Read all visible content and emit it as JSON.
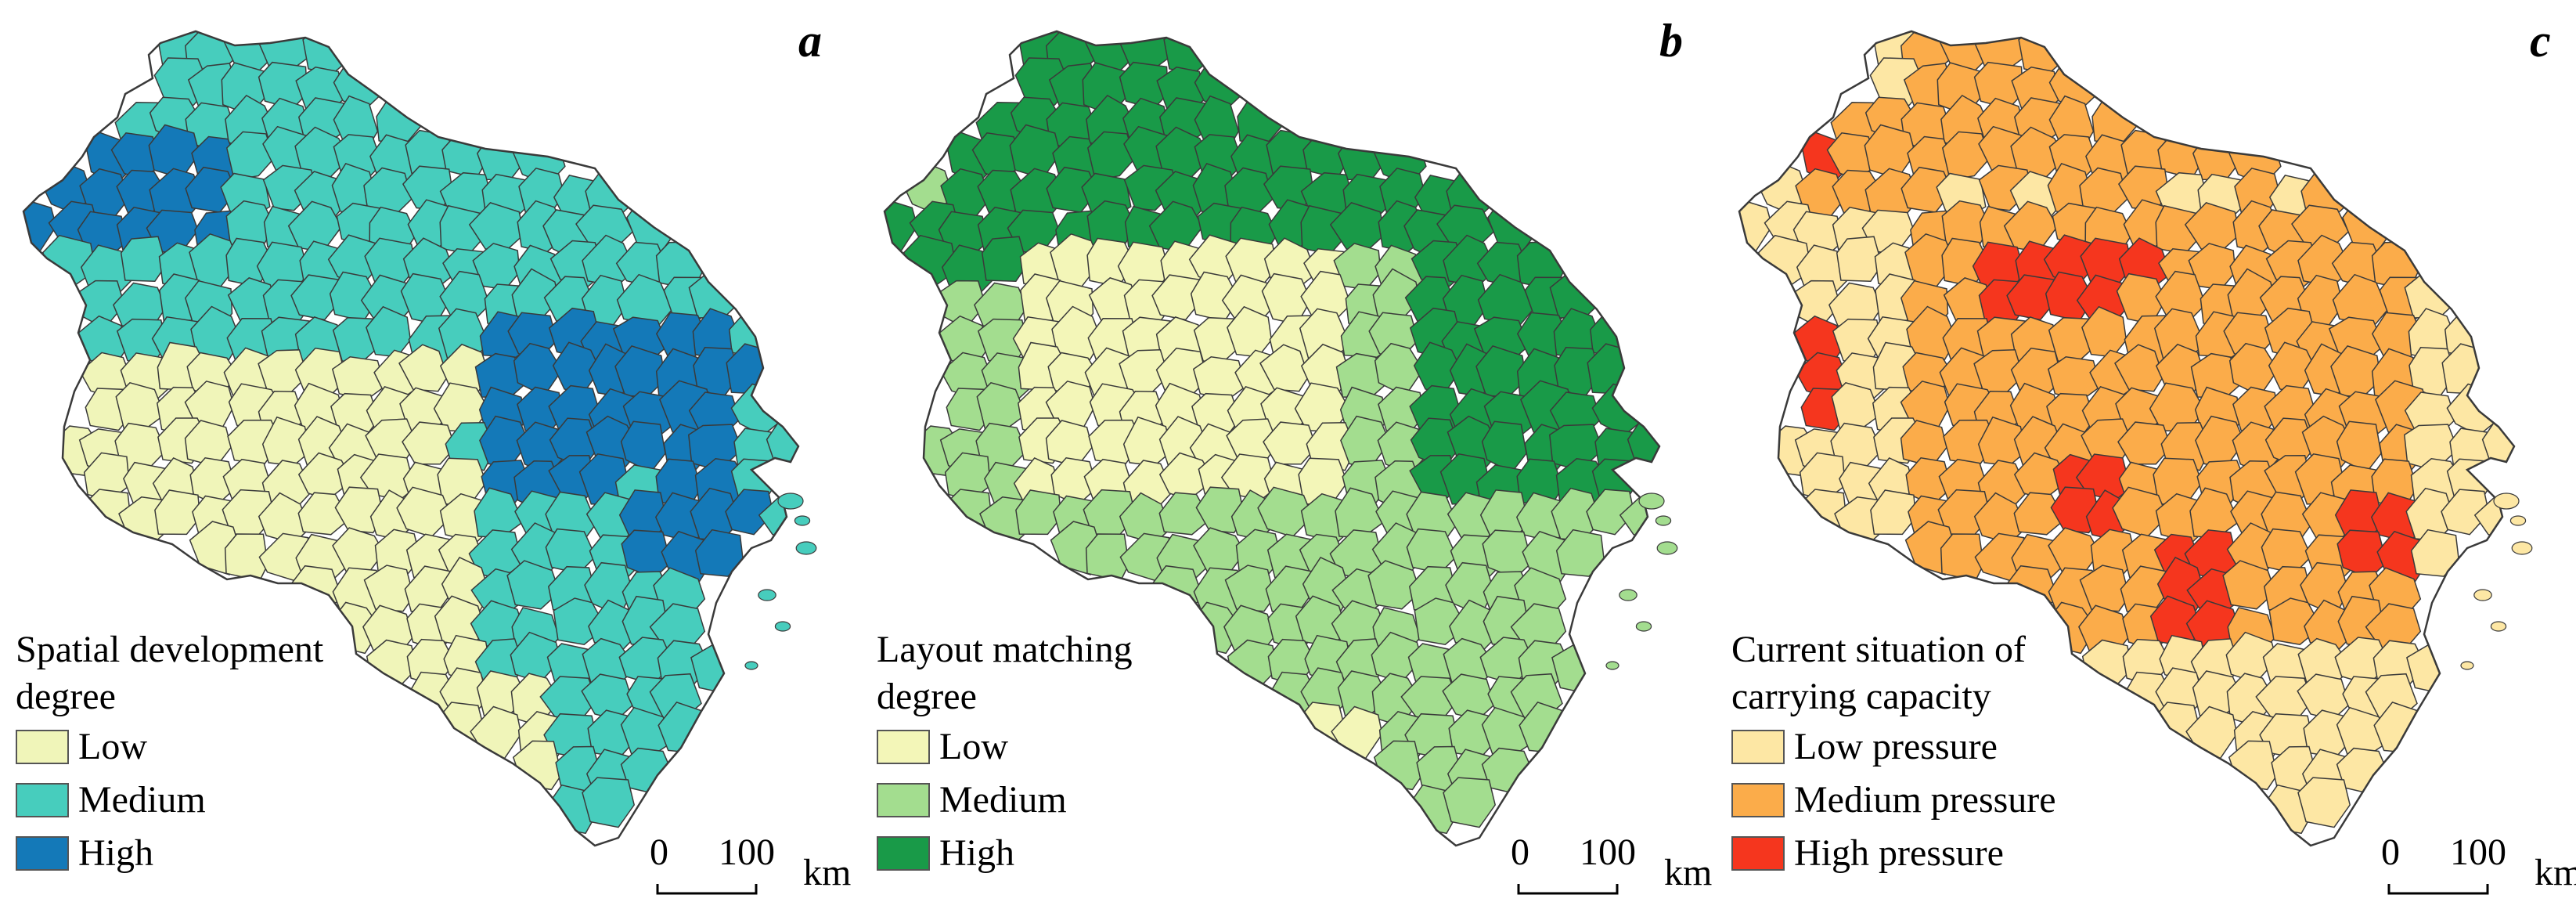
{
  "panels": [
    {
      "letter": "a",
      "legend_title": "Spatial development degree",
      "classes": [
        {
          "label": "Low",
          "color": "#f0f5b9"
        },
        {
          "label": "Medium",
          "color": "#47cdbd"
        },
        {
          "label": "High",
          "color": "#1479b8"
        }
      ]
    },
    {
      "letter": "b",
      "legend_title": "Layout matching degree",
      "classes": [
        {
          "label": "Low",
          "color": "#f3f6b8"
        },
        {
          "label": "Medium",
          "color": "#a3dd8f"
        },
        {
          "label": "High",
          "color": "#199a48"
        }
      ]
    },
    {
      "letter": "c",
      "legend_title": "Current situation of carrying capacity",
      "classes": [
        {
          "label": "Low pressure",
          "color": "#fde7a4"
        },
        {
          "label": "Medium pressure",
          "color": "#fbac4a"
        },
        {
          "label": "High pressure",
          "color": "#f5361e"
        }
      ]
    }
  ],
  "scale_bar": {
    "zero": "0",
    "hundred": "100",
    "unit": "km"
  },
  "boundary_color": "#3a3a3a"
}
